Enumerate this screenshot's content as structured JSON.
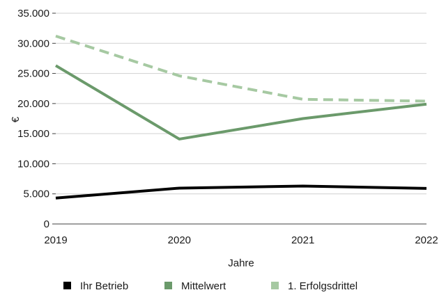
{
  "chart_data": {
    "type": "line",
    "title": "",
    "xlabel": "Jahre",
    "ylabel": "€",
    "x": [
      "2019",
      "2020",
      "2021",
      "2022"
    ],
    "ylim": [
      0,
      35000
    ],
    "y_ticks": [
      0,
      5000,
      10000,
      15000,
      20000,
      25000,
      30000,
      35000
    ],
    "y_tick_labels": [
      "0",
      "5.000",
      "10.000",
      "15.000",
      "20.000",
      "25.000",
      "30.000",
      "35.000"
    ],
    "grid": true,
    "legend_position": "bottom",
    "series": [
      {
        "name": "Ihr Betrieb",
        "values": [
          4300,
          5950,
          6300,
          5900
        ],
        "color": "#000000",
        "style": "solid"
      },
      {
        "name": "Mittelwert",
        "values": [
          26300,
          14100,
          17500,
          19900
        ],
        "color": "#6b9a6b",
        "style": "solid"
      },
      {
        "name": "1. Erfolgsdrittel",
        "values": [
          31200,
          24600,
          20700,
          20400
        ],
        "color": "#a6c9a2",
        "style": "dashed"
      }
    ]
  }
}
